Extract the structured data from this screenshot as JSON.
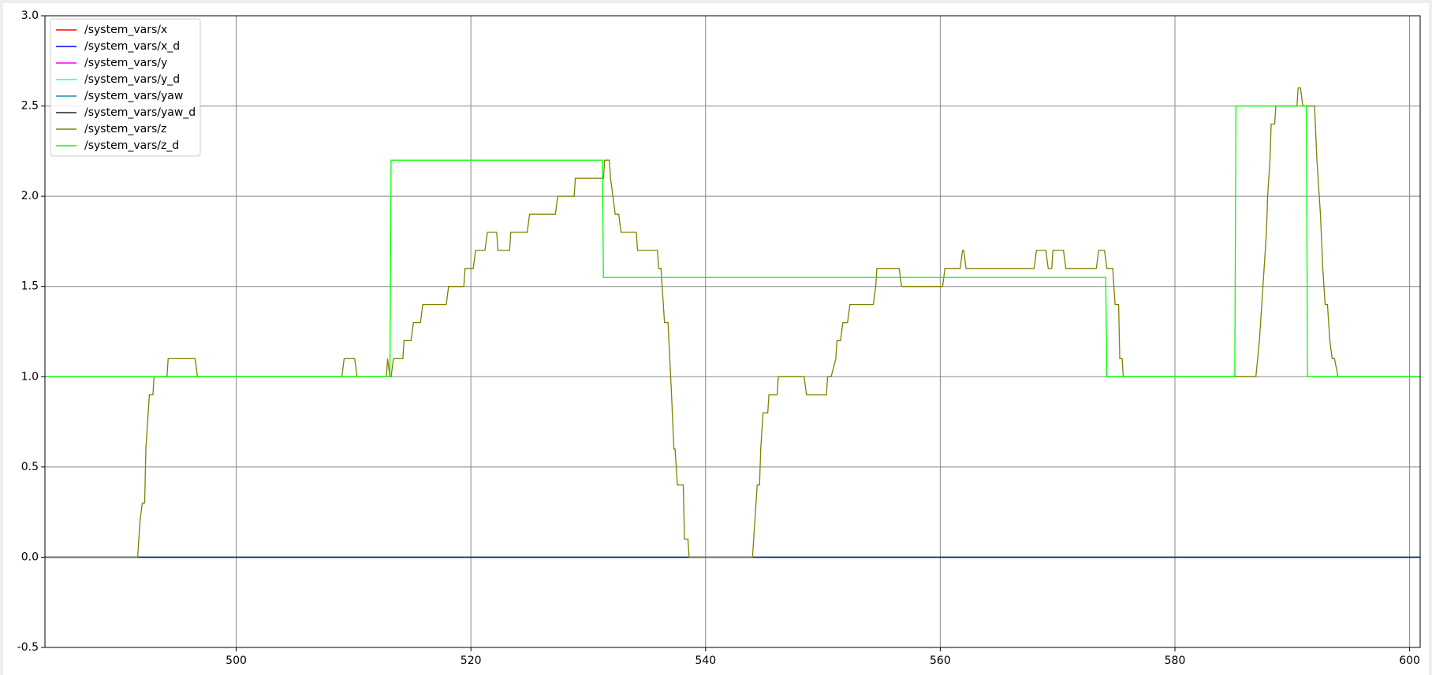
{
  "chart_data": {
    "type": "line",
    "xlim": [
      483.7,
      600.9
    ],
    "xticks": [
      500,
      520,
      540,
      560,
      580,
      600
    ],
    "ylim": [
      -0.5,
      3.0
    ],
    "yticks": [
      -0.5,
      {
        "value": 0,
        "label": "0.0"
      },
      0.5,
      {
        "value": 1,
        "label": "1.0"
      },
      1.5,
      {
        "value": 2,
        "label": "2.0"
      },
      2.5,
      {
        "value": 3,
        "label": "3.0"
      }
    ],
    "grid": true,
    "legend": "upper left",
    "series": [
      {
        "name": "/system_vars/x",
        "color": "#ff0000",
        "x": [
          483.7,
          600.9
        ],
        "values": [
          0,
          0
        ]
      },
      {
        "name": "/system_vars/x_d",
        "color": "#0000ff",
        "x": [
          483.7,
          600.9
        ],
        "values": [
          0,
          0
        ]
      },
      {
        "name": "/system_vars/y",
        "color": "#ff00ff",
        "x": [
          483.7,
          600.9
        ],
        "values": [
          0,
          0
        ]
      },
      {
        "name": "/system_vars/y_d",
        "color": "#00ffff",
        "x": [
          483.7,
          600.9
        ],
        "values": [
          0,
          0
        ]
      },
      {
        "name": "/system_vars/yaw",
        "color": "#1f8fa8",
        "x": [
          483.7,
          600.9
        ],
        "values": [
          0,
          0
        ]
      },
      {
        "name": "/system_vars/yaw_d",
        "color": "#222222",
        "x": [
          483.7,
          600.9
        ],
        "values": [
          0,
          0
        ]
      },
      {
        "name": "/system_vars/z",
        "color": "#808000",
        "x": [
          483.7,
          491.6,
          491.8,
          492.0,
          492.2,
          492.3,
          492.6,
          492.9,
          493.0,
          494.1,
          494.2,
          496.5,
          496.7,
          509.0,
          509.2,
          510.1,
          510.3,
          512.8,
          512.9,
          513.1,
          513.2,
          513.4,
          514.2,
          514.3,
          514.9,
          515.1,
          515.7,
          515.9,
          517.9,
          518.1,
          519.4,
          519.5,
          520.2,
          520.4,
          521.2,
          521.4,
          522.2,
          522.3,
          523.3,
          523.4,
          524.8,
          525.0,
          527.2,
          527.4,
          528.8,
          528.9,
          531.3,
          531.4,
          531.8,
          531.9,
          532.1,
          532.3,
          532.6,
          532.8,
          534.1,
          534.2,
          535.9,
          536.0,
          536.2,
          536.3,
          536.5,
          536.8,
          537.1,
          537.3,
          537.4,
          537.6,
          538.1,
          538.2,
          538.5,
          538.6,
          544.0,
          544.2,
          544.4,
          544.6,
          544.7,
          544.9,
          545.3,
          545.4,
          546.1,
          546.2,
          548.4,
          548.6,
          550.3,
          550.4,
          550.7,
          551.1,
          551.2,
          551.5,
          551.7,
          552.1,
          552.3,
          554.3,
          554.5,
          554.6,
          556.5,
          556.7,
          560.2,
          560.4,
          561.7,
          561.9,
          562.0,
          562.2,
          568.0,
          568.2,
          569.0,
          569.2,
          569.5,
          569.6,
          570.5,
          570.7,
          573.3,
          573.5,
          574.0,
          574.2,
          574.7,
          574.9,
          575.2,
          575.3,
          575.5,
          575.6,
          586.9,
          587.2,
          587.6,
          587.8,
          587.9,
          588.1,
          588.2,
          588.5,
          588.6,
          590.4,
          590.5,
          590.7,
          590.9,
          591.9,
          592.1,
          592.2,
          592.4,
          592.6,
          592.8,
          593.0,
          593.2,
          593.4,
          593.6,
          593.9,
          600.9
        ],
        "values": [
          0,
          0,
          0.2,
          0.3,
          0.3,
          0.6,
          0.9,
          0.9,
          1.0,
          1.0,
          1.1,
          1.1,
          1.0,
          1.0,
          1.1,
          1.1,
          1.0,
          1.0,
          1.1,
          1.0,
          1.0,
          1.1,
          1.1,
          1.2,
          1.2,
          1.3,
          1.3,
          1.4,
          1.4,
          1.5,
          1.5,
          1.6,
          1.6,
          1.7,
          1.7,
          1.8,
          1.8,
          1.7,
          1.7,
          1.8,
          1.8,
          1.9,
          1.9,
          2.0,
          2.0,
          2.1,
          2.1,
          2.2,
          2.2,
          2.1,
          2.0,
          1.9,
          1.9,
          1.8,
          1.8,
          1.7,
          1.7,
          1.6,
          1.6,
          1.5,
          1.3,
          1.3,
          0.9,
          0.6,
          0.6,
          0.4,
          0.4,
          0.1,
          0.1,
          0,
          0,
          0.2,
          0.4,
          0.4,
          0.6,
          0.8,
          0.8,
          0.9,
          0.9,
          1.0,
          1.0,
          0.9,
          0.9,
          1.0,
          1.0,
          1.1,
          1.2,
          1.2,
          1.3,
          1.3,
          1.4,
          1.4,
          1.5,
          1.6,
          1.6,
          1.5,
          1.5,
          1.6,
          1.6,
          1.7,
          1.7,
          1.6,
          1.6,
          1.7,
          1.7,
          1.6,
          1.6,
          1.7,
          1.7,
          1.6,
          1.6,
          1.7,
          1.7,
          1.6,
          1.6,
          1.4,
          1.4,
          1.1,
          1.1,
          1.0,
          1.0,
          1.2,
          1.6,
          1.8,
          2.0,
          2.2,
          2.4,
          2.4,
          2.5,
          2.5,
          2.6,
          2.6,
          2.5,
          2.5,
          2.2,
          2.1,
          1.9,
          1.6,
          1.4,
          1.4,
          1.2,
          1.1,
          1.1,
          1.0,
          1.0
        ]
      },
      {
        "name": "/system_vars/z_d",
        "color": "#00ff00",
        "x": [
          483.7,
          513.1,
          513.2,
          531.2,
          531.3,
          574.1,
          574.2,
          585.1,
          585.2,
          591.2,
          591.3,
          600.9
        ],
        "values": [
          1.0,
          1.0,
          2.2,
          2.2,
          1.55,
          1.55,
          1.0,
          1.0,
          2.5,
          2.5,
          1.0,
          1.0
        ]
      }
    ]
  }
}
